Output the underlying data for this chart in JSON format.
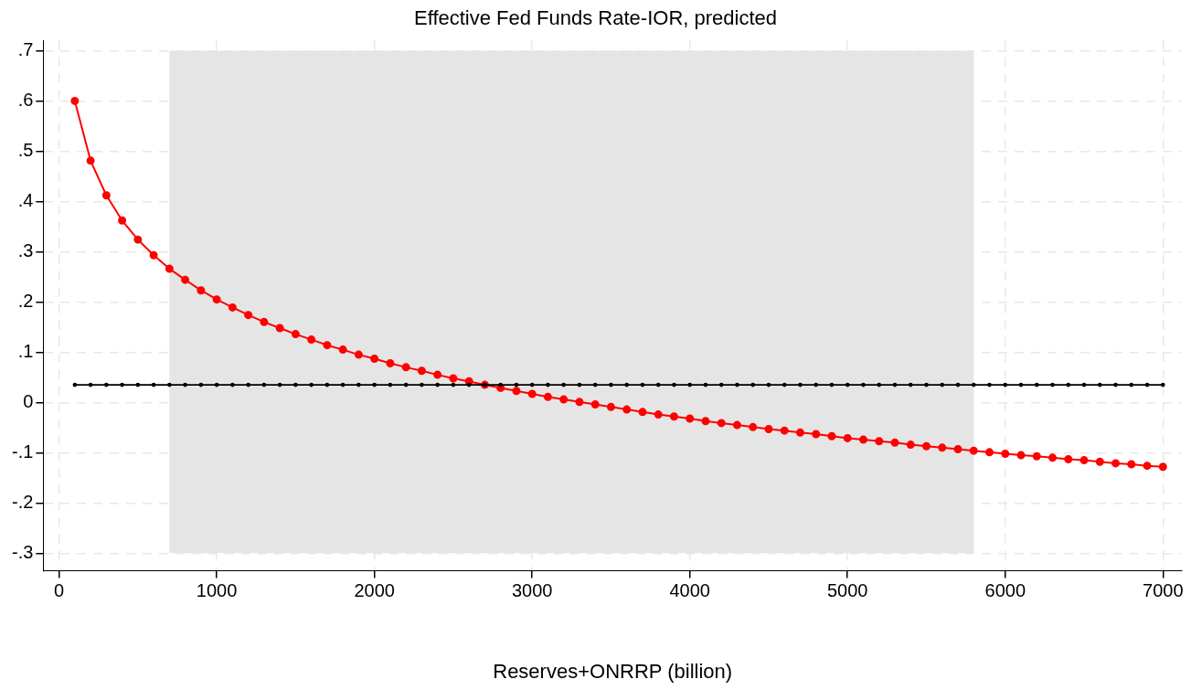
{
  "chart_data": {
    "type": "line",
    "title": "Effective Fed Funds Rate-IOR, predicted",
    "xlabel": "Reserves+ONRRP (billion)",
    "x": [
      100,
      200,
      300,
      400,
      500,
      600,
      700,
      800,
      900,
      1000,
      1100,
      1200,
      1300,
      1400,
      1500,
      1600,
      1700,
      1800,
      1900,
      2000,
      2100,
      2200,
      2300,
      2400,
      2500,
      2600,
      2700,
      2800,
      2900,
      3000,
      3100,
      3200,
      3300,
      3400,
      3500,
      3600,
      3700,
      3800,
      3900,
      4000,
      4100,
      4200,
      4300,
      4400,
      4500,
      4600,
      4700,
      4800,
      4900,
      5000,
      5100,
      5200,
      5300,
      5400,
      5500,
      5600,
      5700,
      5800,
      5900,
      6000,
      6100,
      6200,
      6300,
      6400,
      6500,
      6600,
      6700,
      6800,
      6900,
      7000
    ],
    "series": [
      {
        "color": "#ff0000",
        "values": [
          0.6,
          0.481,
          0.412,
          0.362,
          0.324,
          0.293,
          0.266,
          0.244,
          0.223,
          0.205,
          0.189,
          0.174,
          0.16,
          0.148,
          0.136,
          0.125,
          0.114,
          0.105,
          0.095,
          0.087,
          0.078,
          0.07,
          0.063,
          0.055,
          0.048,
          0.042,
          0.035,
          0.029,
          0.023,
          0.017,
          0.011,
          0.006,
          0.001,
          -0.004,
          -0.009,
          -0.014,
          -0.019,
          -0.024,
          -0.028,
          -0.032,
          -0.037,
          -0.041,
          -0.045,
          -0.049,
          -0.053,
          -0.056,
          -0.06,
          -0.063,
          -0.067,
          -0.071,
          -0.074,
          -0.077,
          -0.08,
          -0.084,
          -0.087,
          -0.09,
          -0.093,
          -0.096,
          -0.099,
          -0.102,
          -0.105,
          -0.107,
          -0.11,
          -0.113,
          -0.115,
          -0.118,
          -0.121,
          -0.123,
          -0.126,
          -0.128
        ]
      },
      {
        "color": "#000000",
        "values": [
          0.035,
          0.035,
          0.035,
          0.035,
          0.035,
          0.035,
          0.035,
          0.035,
          0.035,
          0.035,
          0.035,
          0.035,
          0.035,
          0.035,
          0.035,
          0.035,
          0.035,
          0.035,
          0.035,
          0.035,
          0.035,
          0.035,
          0.035,
          0.035,
          0.035,
          0.035,
          0.035,
          0.035,
          0.035,
          0.035,
          0.035,
          0.035,
          0.035,
          0.035,
          0.035,
          0.035,
          0.035,
          0.035,
          0.035,
          0.035,
          0.035,
          0.035,
          0.035,
          0.035,
          0.035,
          0.035,
          0.035,
          0.035,
          0.035,
          0.035,
          0.035,
          0.035,
          0.035,
          0.035,
          0.035,
          0.035,
          0.035,
          0.035,
          0.035,
          0.035,
          0.035,
          0.035,
          0.035,
          0.035,
          0.035,
          0.035,
          0.035,
          0.035,
          0.035,
          0.035
        ]
      }
    ],
    "bands": [
      {
        "axis": "x",
        "from": 700,
        "to": 5800,
        "color": "#e5e5e5"
      }
    ],
    "xlim": [
      -100,
      7120
    ],
    "xticks": [
      0,
      1000,
      2000,
      3000,
      4000,
      5000,
      6000,
      7000
    ],
    "ylim": [
      -0.335,
      0.72
    ],
    "yticks": [
      {
        "value": -0.3,
        "label": "-.3"
      },
      {
        "value": -0.2,
        "label": "-.2"
      },
      {
        "value": -0.1,
        "label": "-.1"
      },
      0,
      {
        "value": 0.1,
        "label": ".1"
      },
      {
        "value": 0.2,
        "label": ".2"
      },
      {
        "value": 0.3,
        "label": ".3"
      },
      {
        "value": 0.4,
        "label": ".4"
      },
      {
        "value": 0.5,
        "label": ".5"
      },
      {
        "value": 0.6,
        "label": ".6"
      },
      {
        "value": 0.7,
        "label": ".7"
      }
    ],
    "grid": true,
    "legend": false,
    "marker": "circle",
    "line_style": "solid"
  }
}
